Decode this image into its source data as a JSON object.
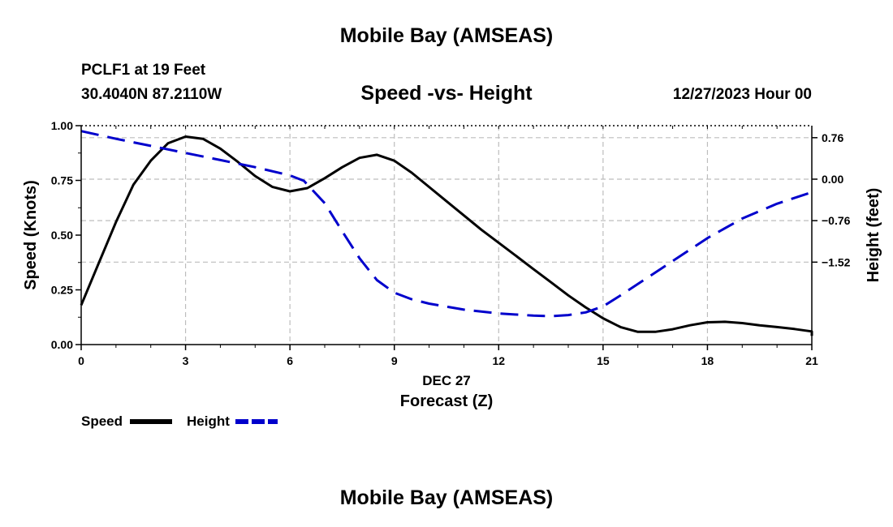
{
  "header": {
    "title": "Mobile Bay (AMSEAS)",
    "station": "PCLF1 at 19 Feet",
    "coords": "30.4040N  87.2110W",
    "date": "12/27/2023 Hour 00"
  },
  "footer": {
    "title": "Mobile Bay (AMSEAS)"
  },
  "chart_data": {
    "type": "line",
    "title": "Speed -vs- Height",
    "xlabel": "Forecast (Z)",
    "xdate": "DEC 27",
    "ylabel": "Speed (Knots)",
    "y2label": "Height (feet)",
    "xlim": [
      0,
      21
    ],
    "ylim": [
      0,
      1.0
    ],
    "y2lim": [
      -3.03,
      0.98
    ],
    "xticks": [
      0,
      3,
      6,
      9,
      12,
      15,
      18,
      21
    ],
    "xtick_labels": [
      "0",
      "3",
      "6",
      "9",
      "12",
      "15",
      "18",
      "21"
    ],
    "yticks": [
      0,
      0.25,
      0.5,
      0.75,
      1.0
    ],
    "ytick_labels": [
      "0.00",
      "0.25",
      "0.50",
      "0.75",
      "1.00"
    ],
    "y2ticks": [
      0.76,
      0.0,
      -0.76,
      -1.52
    ],
    "y2tick_labels": [
      "0.76",
      "0.00",
      "−0.76",
      "−1.52"
    ],
    "grid": true,
    "series": [
      {
        "name": "Speed",
        "axis": "left",
        "color": "#000000",
        "dash": "solid",
        "x": [
          0,
          0.5,
          1,
          1.5,
          2,
          2.5,
          3,
          3.5,
          4,
          4.5,
          5,
          5.5,
          6,
          6.5,
          7,
          7.5,
          8,
          8.5,
          9,
          9.5,
          10,
          10.5,
          11,
          11.5,
          12,
          12.5,
          13,
          13.5,
          14,
          14.5,
          15,
          15.5,
          16,
          16.5,
          17,
          17.5,
          18,
          18.5,
          19,
          19.5,
          20,
          20.5,
          21
        ],
        "values": [
          0.18,
          0.37,
          0.56,
          0.73,
          0.84,
          0.92,
          0.95,
          0.94,
          0.895,
          0.835,
          0.77,
          0.72,
          0.7,
          0.715,
          0.76,
          0.81,
          0.853,
          0.867,
          0.84,
          0.785,
          0.72,
          0.655,
          0.59,
          0.525,
          0.465,
          0.405,
          0.345,
          0.285,
          0.225,
          0.17,
          0.12,
          0.08,
          0.058,
          0.058,
          0.07,
          0.088,
          0.102,
          0.104,
          0.098,
          0.088,
          0.08,
          0.071,
          0.06
        ],
        "values_tail": [
          0.04
        ]
      },
      {
        "name": "Height",
        "axis": "right",
        "color": "#0000cc",
        "dash": "dashed",
        "x": [
          0,
          1,
          2,
          3,
          4,
          5,
          6,
          6.4,
          7,
          7.5,
          8,
          8.5,
          9,
          9.5,
          10,
          11,
          12,
          13,
          13.5,
          14,
          14.5,
          15,
          15.5,
          16,
          17,
          18,
          19,
          20,
          21
        ],
        "values": [
          0.88,
          0.74,
          0.61,
          0.48,
          0.35,
          0.22,
          0.07,
          -0.03,
          -0.44,
          -0.95,
          -1.45,
          -1.85,
          -2.08,
          -2.2,
          -2.28,
          -2.39,
          -2.46,
          -2.5,
          -2.51,
          -2.49,
          -2.44,
          -2.33,
          -2.13,
          -1.92,
          -1.5,
          -1.08,
          -0.72,
          -0.45,
          -0.24
        ]
      }
    ],
    "legend": [
      {
        "label": "Speed",
        "color": "#000000",
        "dash": "solid"
      },
      {
        "label": "Height",
        "color": "#0000cc",
        "dash": "dashed"
      }
    ],
    "legend_position": "bottom-left"
  }
}
